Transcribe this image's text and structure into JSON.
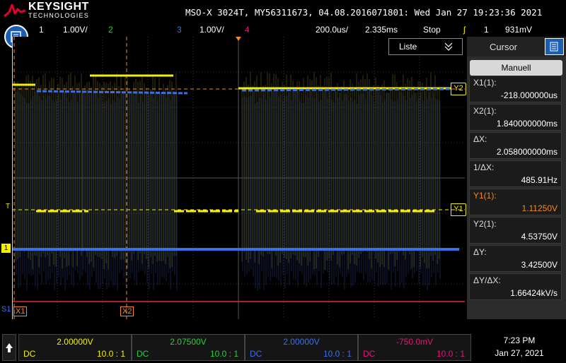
{
  "header": {
    "brand": "KEYSIGHT",
    "brand_sub": "TECHNOLOGIES",
    "model_info": "MSO-X 3024T, MY56311673, 04.08.2016071801: Wed Jan 27 19:23:36 2021"
  },
  "channel_bar": {
    "ch1_num": "1",
    "ch1_scale": "1.00V/",
    "ch2_num": "2",
    "ch3_num": "3",
    "ch3_scale": "1.00V/",
    "ch4_num": "4",
    "timebase": "200.0us/",
    "delay": "2.335ms",
    "run_state": "Stop",
    "trigger_symbol": "ʃ",
    "trigger_channel": "1",
    "trigger_level": "931mV"
  },
  "waveform": {
    "list_button": "Liste",
    "marker_y2": "Y2",
    "marker_y1": "Y1",
    "marker_x1": "X1",
    "marker_x2": "X2",
    "trigger_marker": "T",
    "ch1_marker": "1",
    "digital_marker": "S1"
  },
  "panel": {
    "title": "Cursor",
    "mode_button": "Manuell",
    "rows": [
      {
        "label": "X1(1):",
        "value": "-218.000000us"
      },
      {
        "label": "X2(1):",
        "value": "1.840000000ms"
      },
      {
        "label": "ΔX:",
        "value": "2.058000000ms"
      },
      {
        "label": "1/ΔX:",
        "value": "485.91Hz"
      },
      {
        "label": "Y1(1):",
        "value": "1.11250V"
      },
      {
        "label": "Y2(1):",
        "value": "4.53750V"
      },
      {
        "label": "ΔY:",
        "value": "3.42500V"
      },
      {
        "label": "ΔY/ΔX:",
        "value": "1.66424kV/s"
      }
    ]
  },
  "footer": {
    "slots": [
      {
        "value": "2.00000V",
        "coupling": "DC",
        "probe": "10.0 : 1"
      },
      {
        "value": "2.07500V",
        "coupling": "DC",
        "probe": "10.0 : 1"
      },
      {
        "value": "2.00000V",
        "coupling": "DC",
        "probe": "10.0 : 1"
      },
      {
        "value": "-750.0mV",
        "coupling": "DC",
        "probe": "10.0 : 1"
      }
    ],
    "time": "7:23 PM",
    "date": "Jan 27, 2021"
  },
  "colors": {
    "ch1": "#f4f000",
    "ch2": "#2ecc40",
    "ch3": "#3b6fe8",
    "ch4": "#e0187a",
    "cursor": "#f08a24",
    "digital": "#e03030",
    "accent": "#1a5fb4"
  },
  "icons": [
    "menu-icon",
    "list-dropdown-icon",
    "panel-menu-icon",
    "up-arrow-icon",
    "trigger-icon",
    "cursor-icon"
  ]
}
